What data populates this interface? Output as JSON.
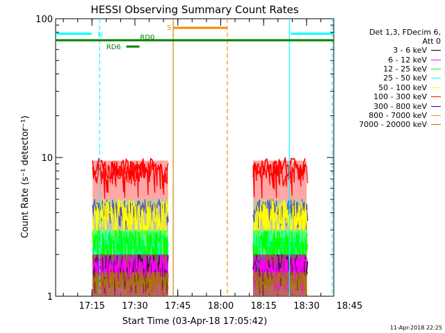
{
  "chart_data": {
    "type": "line",
    "title": "HESSI Observing Summary Count Rates",
    "xlabel": "Start Time (03-Apr-18 17:05:42)",
    "ylabel": "Count Rate (s⁻¹ detector⁻¹)",
    "yscale": "log",
    "ylim": [
      1,
      100
    ],
    "xlim_minutes": [
      2.3,
      99.5
    ],
    "y_ticks": [
      "1",
      "10",
      "100"
    ],
    "x_ticks": [
      {
        "label": "17:15",
        "t": 15
      },
      {
        "label": "17:30",
        "t": 30
      },
      {
        "label": "17:45",
        "t": 45
      },
      {
        "label": "18:00",
        "t": 60
      },
      {
        "label": "18:15",
        "t": 75
      },
      {
        "label": "18:30",
        "t": 90
      },
      {
        "label": "18:45",
        "t": 105
      }
    ],
    "legend": {
      "header": [
        "Det 1,3, FDecim 6,",
        "Att 0"
      ],
      "placement": "right"
    },
    "series": [
      {
        "name": "3 - 6 keV",
        "color": "#000000",
        "range": [
          1,
          2
        ]
      },
      {
        "name": "6 - 12 keV",
        "color": "#ff00ff",
        "range": [
          1,
          2
        ]
      },
      {
        "name": "12 - 25 keV",
        "color": "#00ff00",
        "range": [
          1.2,
          3
        ]
      },
      {
        "name": "25 - 50 keV",
        "color": "#00ffff",
        "range": [
          1.3,
          3
        ]
      },
      {
        "name": "50 - 100 keV",
        "color": "#ffff00",
        "range": [
          2,
          5
        ]
      },
      {
        "name": "100 - 300 keV",
        "color": "#ff0000",
        "range": [
          5,
          9.5
        ]
      },
      {
        "name": "300 - 800 keV",
        "color": "#0000ff",
        "range": [
          3,
          5
        ]
      },
      {
        "name": "800 - 7000 keV",
        "color": "#ff8800",
        "range": [
          1,
          2
        ]
      },
      {
        "name": "7000 - 20000 keV",
        "color": "#aa7700",
        "range": [
          1,
          1.5
        ]
      }
    ],
    "data_intervals": [
      {
        "start_t": 15.2,
        "end_t": 41.6
      },
      {
        "start_t": 71.3,
        "end_t": 90.0
      }
    ],
    "flags": [
      {
        "label": "N",
        "color": "#00ffff",
        "y": 78,
        "segments": [
          [
            2.3,
            14.9
          ],
          [
            84.5,
            99.5
          ]
        ],
        "label_t": 17.0,
        "label_y": 78
      },
      {
        "label": "S",
        "color": "#ff8800",
        "y": 86,
        "segments": [
          [
            43.5,
            62.3
          ]
        ],
        "label_t": 41.2,
        "label_y": 87
      },
      {
        "label": "RD0",
        "color": "#008000",
        "y": 70,
        "segments": [
          [
            2.3,
            99.5
          ]
        ],
        "label_t": 31.8,
        "label_y": 74
      },
      {
        "label": "RD6",
        "color": "#008000",
        "y": 63,
        "segments": [
          [
            27.0,
            31.6
          ]
        ],
        "label_t": 20.0,
        "label_y": 63
      }
    ],
    "markers": [
      {
        "color": "#00ffff",
        "style": "dashed",
        "t": 17.7
      },
      {
        "color": "#00ffff",
        "style": "dashed",
        "t": 99.0
      },
      {
        "color": "#00ffff",
        "style": "solid",
        "t": 84.0
      },
      {
        "color": "#ff8800",
        "style": "dashed",
        "t": 62.3
      },
      {
        "color": "#cc8800",
        "style": "solid",
        "t": 43.4
      }
    ]
  },
  "footer": {
    "timestamp": "11-Apr-2018 22:25"
  }
}
